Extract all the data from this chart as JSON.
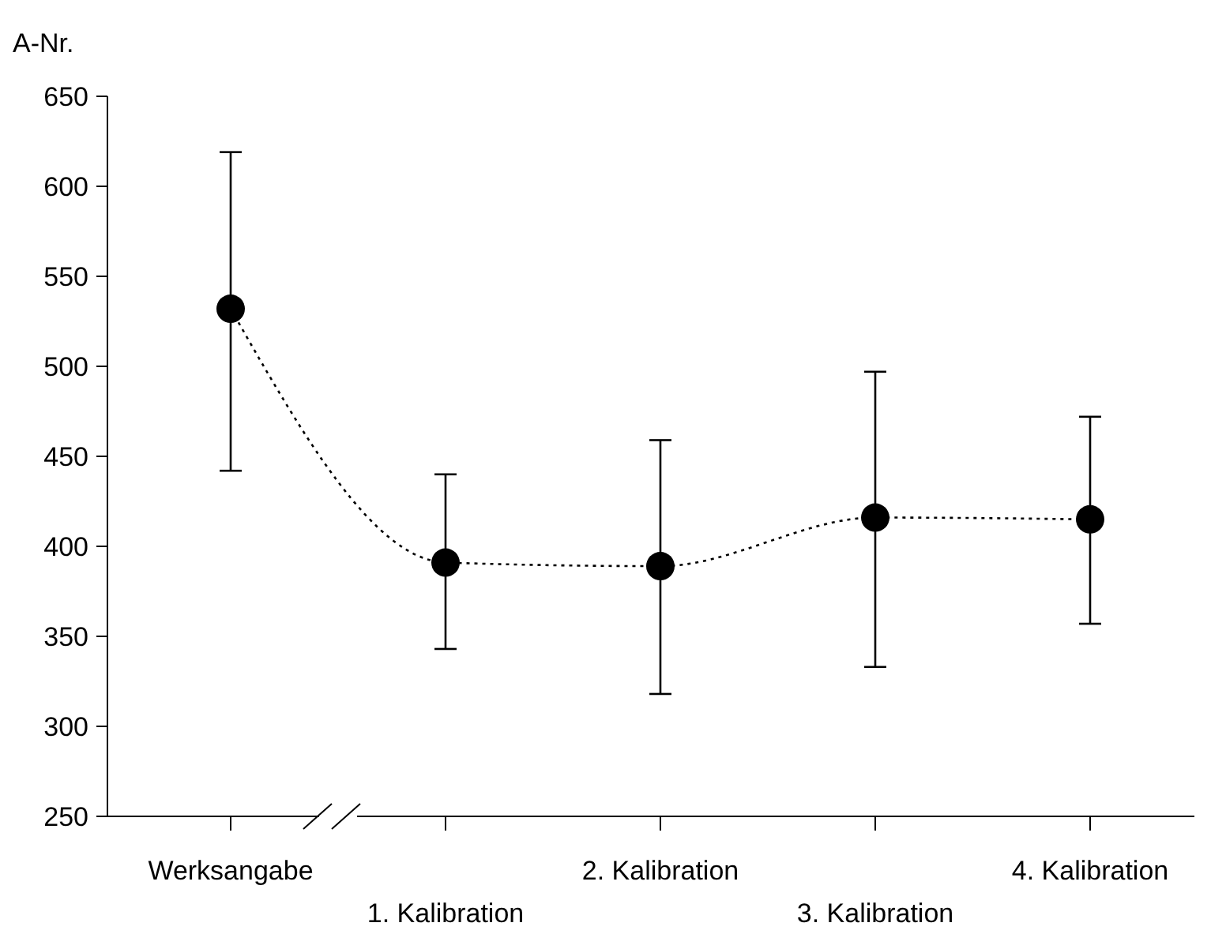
{
  "chart_data": {
    "type": "line",
    "ylabel": "A-Nr.",
    "categories": [
      "Werksangabe",
      "1. Kalibration",
      "2. Kalibration",
      "3. Kalibration",
      "4. Kalibration"
    ],
    "series": [
      {
        "color": "#000000",
        "values": [
          532,
          391,
          389,
          416,
          415
        ],
        "errors": [
          [
            442,
            619
          ],
          [
            343,
            440
          ],
          [
            318,
            459
          ],
          [
            333,
            497
          ],
          [
            357,
            472
          ]
        ]
      }
    ],
    "ylim": [
      250,
      650
    ],
    "yticks": [
      250,
      300,
      350,
      400,
      450,
      500,
      550,
      600,
      650
    ],
    "marker": "circle",
    "line_style": "dotted"
  }
}
